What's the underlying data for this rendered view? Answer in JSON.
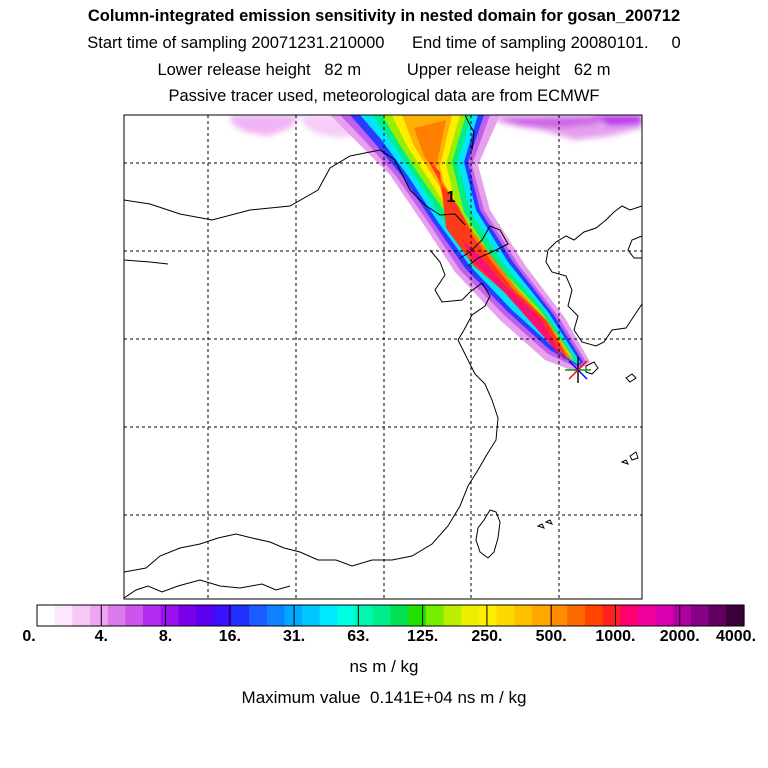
{
  "titles": {
    "line1": "Column-integrated emission sensitivity in nested domain for gosan_200712",
    "line2": "Start time of sampling 20071231.210000      End time of sampling 20080101.     0",
    "line3": "Lower release height   82 m          Upper release height   62 m",
    "line4": "Passive tracer used, meteorological data are from ECMWF"
  },
  "map": {
    "plume_label": "1",
    "receptor_marker": "asterisk"
  },
  "colorbar": {
    "tick_labels": [
      "0.",
      "4.",
      "8.",
      "16.",
      "31.",
      "63.",
      "125.",
      "250.",
      "500.",
      "1000.",
      "2000.",
      "4000."
    ],
    "colors": [
      "#ffffff",
      "#fde8fd",
      "#f6c8f6",
      "#eea6f2",
      "#d97be8",
      "#cc55ee",
      "#b52aef",
      "#9a10ee",
      "#7b00ea",
      "#5a00ee",
      "#3a10ff",
      "#2030ff",
      "#1a5cff",
      "#0e82ff",
      "#00a8ff",
      "#00c8ff",
      "#00eaff",
      "#00ffe0",
      "#00f8b0",
      "#00ee88",
      "#00e050",
      "#22e000",
      "#77ee00",
      "#bbee00",
      "#eeee00",
      "#ffee00",
      "#ffd800",
      "#ffc000",
      "#ffa800",
      "#ff8c00",
      "#ff6a00",
      "#ff4400",
      "#ff2020",
      "#ff0070",
      "#f0009c",
      "#d800b0",
      "#b000a0",
      "#880088",
      "#600060",
      "#3a003a"
    ]
  },
  "units": "ns m / kg",
  "max_value": "Maximum value  0.141E+04 ns m / kg"
}
